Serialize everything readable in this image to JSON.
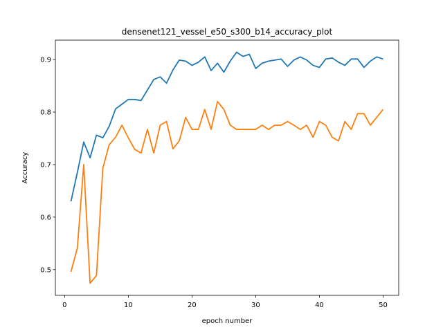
{
  "chart_data": {
    "type": "line",
    "title": "densenet121_vessel_e50_s300_b14_accuracy_plot",
    "xlabel": "epoch number",
    "ylabel": "Accuracy",
    "xlim": [
      -1.45,
      52.45
    ],
    "ylim": [
      0.451,
      0.937
    ],
    "x_ticks": [
      0,
      10,
      20,
      30,
      40,
      50
    ],
    "y_ticks": [
      0.5,
      0.6,
      0.7,
      0.8,
      0.9
    ],
    "y_tick_labels": [
      "0.5",
      "0.6",
      "0.7",
      "0.8",
      "0.9"
    ],
    "grid": false,
    "x": [
      1,
      2,
      3,
      4,
      5,
      6,
      7,
      8,
      9,
      10,
      11,
      12,
      13,
      14,
      15,
      16,
      17,
      18,
      19,
      20,
      21,
      22,
      23,
      24,
      25,
      26,
      27,
      28,
      29,
      30,
      31,
      32,
      33,
      34,
      35,
      36,
      37,
      38,
      39,
      40,
      41,
      42,
      43,
      44,
      45,
      46,
      47,
      48,
      49,
      50
    ],
    "series": [
      {
        "color": "#1f77b4",
        "values": [
          0.63,
          0.685,
          0.743,
          0.713,
          0.756,
          0.751,
          0.773,
          0.806,
          0.815,
          0.824,
          0.824,
          0.822,
          0.842,
          0.862,
          0.867,
          0.855,
          0.88,
          0.899,
          0.897,
          0.889,
          0.895,
          0.905,
          0.879,
          0.893,
          0.876,
          0.897,
          0.914,
          0.906,
          0.91,
          0.883,
          0.893,
          0.897,
          0.899,
          0.901,
          0.887,
          0.899,
          0.905,
          0.899,
          0.889,
          0.885,
          0.901,
          0.903,
          0.895,
          0.889,
          0.901,
          0.901,
          0.885,
          0.897,
          0.905,
          0.901
        ]
      },
      {
        "color": "#ff7f0e",
        "values": [
          0.496,
          0.541,
          0.7,
          0.474,
          0.489,
          0.693,
          0.738,
          0.752,
          0.775,
          0.751,
          0.729,
          0.722,
          0.767,
          0.722,
          0.775,
          0.782,
          0.73,
          0.745,
          0.79,
          0.767,
          0.767,
          0.805,
          0.767,
          0.82,
          0.805,
          0.775,
          0.767,
          0.767,
          0.767,
          0.767,
          0.775,
          0.767,
          0.775,
          0.775,
          0.782,
          0.775,
          0.767,
          0.775,
          0.752,
          0.782,
          0.775,
          0.752,
          0.745,
          0.782,
          0.767,
          0.797,
          0.797,
          0.775,
          0.79,
          0.805
        ]
      }
    ]
  }
}
